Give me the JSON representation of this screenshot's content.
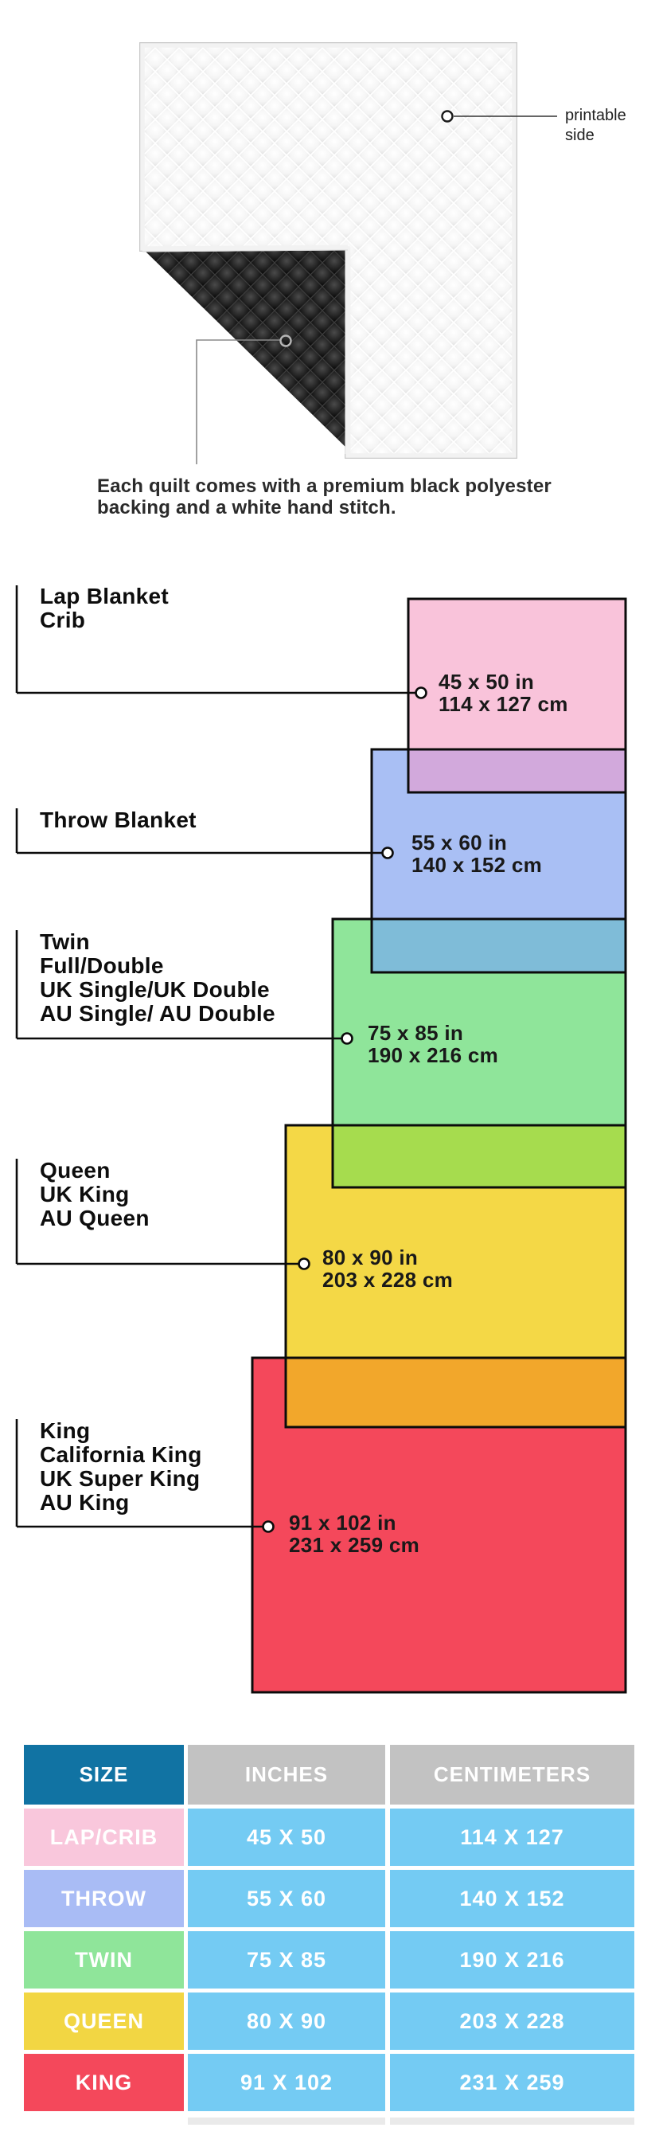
{
  "quilt": {
    "printable_label": "printable side",
    "caption_line1": "Each quilt comes with a premium black polyester",
    "caption_line2": "backing and a white hand stitch."
  },
  "diagram": {
    "items": [
      {
        "id": "lap-crib",
        "labels": [
          "Lap Blanket",
          "Crib"
        ],
        "inches": "45 x 50 in",
        "cm": "114 x 127 cm",
        "fill": "#F9C3DA",
        "overlap": "#D2A9DC"
      },
      {
        "id": "throw",
        "labels": [
          "Throw Blanket"
        ],
        "inches": "55 x 60 in",
        "cm": "140 x 152 cm",
        "fill": "#A9BFF4",
        "overlap": "#7FBCD8"
      },
      {
        "id": "twin",
        "labels": [
          "Twin",
          "Full/Double",
          "UK Single/UK Double",
          "AU Single/ AU Double"
        ],
        "inches": "75 x 85 in",
        "cm": "190 x 216 cm",
        "fill": "#8FE59A",
        "overlap": "#A6DC4E"
      },
      {
        "id": "queen",
        "labels": [
          "Queen",
          "UK King",
          "AU Queen"
        ],
        "inches": "80 x 90 in",
        "cm": "203 x 228 cm",
        "fill": "#F4D846",
        "overlap": "#F2A72B"
      },
      {
        "id": "king",
        "labels": [
          "King",
          "California King",
          "UK Super King",
          "AU King"
        ],
        "inches": "91 x 102 in",
        "cm": "231 x 259 cm",
        "fill": "#F4485B",
        "overlap": null
      }
    ]
  },
  "table": {
    "headers": [
      "SIZE",
      "INCHES",
      "CENTIMETERS"
    ],
    "header_size_color": "#1173A3",
    "header_gray_color": "#C2C2C2",
    "data_cell_color": "#74CBF3",
    "rows": [
      {
        "size": "LAP/CRIB",
        "inches": "45 X 50",
        "cm": "114 X 127",
        "color": "#F9C7DC"
      },
      {
        "size": "THROW",
        "inches": "55 X 60",
        "cm": "140 X 152",
        "color": "#A9BCF5"
      },
      {
        "size": "TWIN",
        "inches": "75 X 85",
        "cm": "190 X 216",
        "color": "#8FE59A"
      },
      {
        "size": "QUEEN",
        "inches": "80 X 90",
        "cm": "203 X 228",
        "color": "#F2D643"
      },
      {
        "size": "KING",
        "inches": "91 X 102",
        "cm": "231 X 259",
        "color": "#F4485B"
      }
    ]
  }
}
